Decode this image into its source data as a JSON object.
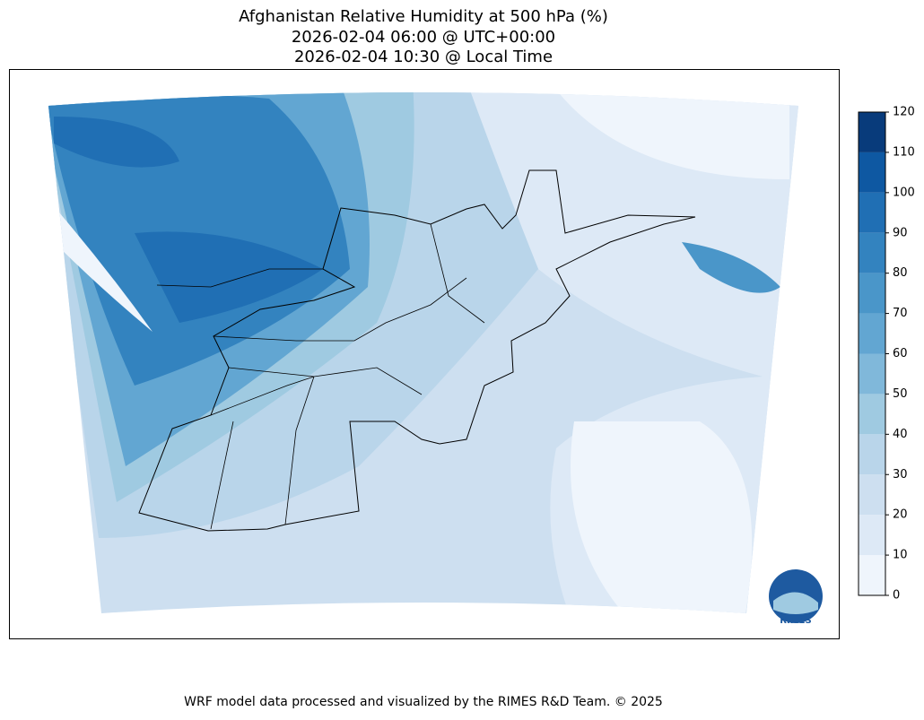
{
  "title": [
    "Afghanistan Relative Humidity at 500 hPa (%)",
    "2026-02-04 06:00 @ UTC+00:00",
    "2026-02-04 10:30 @ Local Time"
  ],
  "colorbar": {
    "lim": [
      0,
      120
    ],
    "ticks": [
      0,
      10,
      20,
      30,
      40,
      50,
      60,
      70,
      80,
      90,
      100,
      110,
      120
    ],
    "colors": [
      "#eff5fc",
      "#dde9f6",
      "#cddff0",
      "#b9d5ea",
      "#9fcae1",
      "#80b8da",
      "#62a6d2",
      "#4a96c9",
      "#3383bf",
      "#206fb4",
      "#0e58a2",
      "#083b7b"
    ]
  },
  "logo": "RIMES",
  "footer": "WRF model data processed and visualized by the RIMES R&D Team. © 2025"
}
